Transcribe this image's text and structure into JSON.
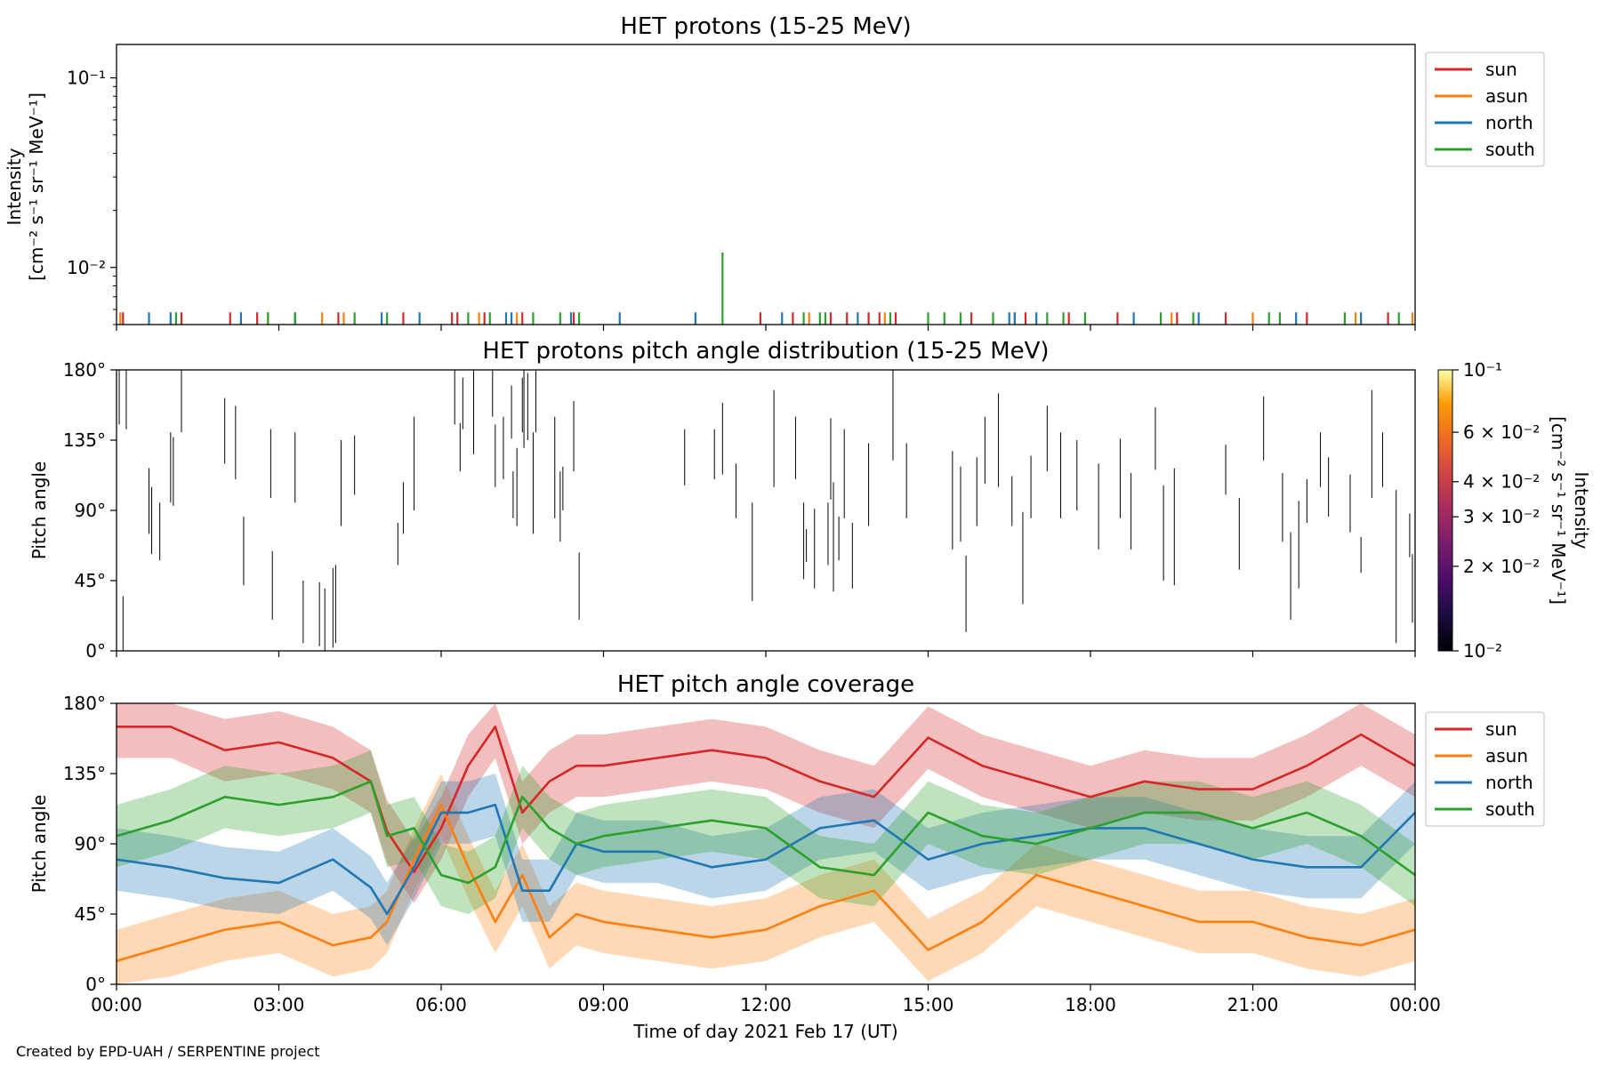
{
  "footer": "Created by EPD-UAH / SERPENTINE project",
  "colors": {
    "sun": "#d62728",
    "asun": "#ff7f0e",
    "north": "#1f77b4",
    "south": "#2ca02c",
    "pad_line": "#000000"
  },
  "chart_data": [
    {
      "type": "line",
      "title": "HET protons (15-25 MeV)",
      "xlabel": "",
      "ylabel": [
        "Intensity",
        "[cm⁻² s⁻¹ sr⁻¹ MeV⁻¹]"
      ],
      "yscale": "log",
      "ylim": [
        0.005,
        0.15
      ],
      "yticks": [
        {
          "value": 0.1,
          "label": "10⁻¹"
        },
        {
          "value": 0.01,
          "label": "10⁻²"
        }
      ],
      "xlim": [
        0,
        24
      ],
      "legend": [
        "sun",
        "asun",
        "north",
        "south"
      ],
      "legend_position": "outside-right",
      "series": [
        {
          "name": "sun",
          "color": "#d62728",
          "spike_height": 0.0058,
          "times": [
            0.12,
            1.2,
            2.1,
            2.6,
            4.1,
            5.3,
            6.2,
            6.3,
            6.8,
            7.5,
            8.45,
            11.9,
            12.5,
            13.2,
            13.5,
            13.9,
            14.1,
            14.4,
            15.8,
            16.8,
            17.6,
            18.5,
            19.6,
            20.5,
            22.0,
            23.5
          ]
        },
        {
          "name": "asun",
          "color": "#ff7f0e",
          "spike_height": 0.0058,
          "times": [
            0.07,
            2.8,
            3.8,
            4.2,
            6.7,
            7.4,
            12.8,
            14.2,
            16.6,
            19.5,
            21.0,
            22.9,
            23.95
          ]
        },
        {
          "name": "north",
          "color": "#1f77b4",
          "spike_height": 0.0058,
          "times": [
            0.6,
            1.0,
            2.3,
            3.3,
            4.9,
            5.6,
            7.3,
            7.2,
            8.4,
            9.3,
            10.7,
            12.3,
            13.7,
            16.5,
            16.6,
            17.0,
            18.8,
            20.0,
            21.8,
            23.0
          ]
        },
        {
          "name": "south",
          "color": "#2ca02c",
          "spike_height": 0.0058,
          "times": [
            1.1,
            2.8,
            3.3,
            4.4,
            5.0,
            6.5,
            6.9,
            7.7,
            8.2,
            8.55,
            12.7,
            13.0,
            13.1,
            14.3,
            15.0,
            15.3,
            15.6,
            16.2,
            17.2,
            17.5,
            17.9,
            19.3,
            19.9,
            21.3,
            21.5,
            22.7,
            23.7
          ],
          "peak": {
            "time": 11.2,
            "value": 0.012
          }
        }
      ]
    },
    {
      "type": "heatmap",
      "title": "HET protons pitch angle distribution (15-25 MeV)",
      "xlabel": "",
      "ylabel": "Pitch angle",
      "ylim": [
        0,
        180
      ],
      "yticks": [
        "0°",
        "45°",
        "90°",
        "135°",
        "180°"
      ],
      "xlim": [
        0,
        24
      ],
      "colorbar": {
        "label": [
          "Intensity",
          "[cm⁻² s⁻¹ sr⁻¹ MeV⁻¹]"
        ],
        "scale": "log",
        "range": [
          0.01,
          0.1
        ],
        "colormap": "inferno",
        "ticks": [
          {
            "value": 0.1,
            "label": "10⁻¹"
          },
          {
            "value": 0.06,
            "label": "6 × 10⁻²"
          },
          {
            "value": 0.04,
            "label": "4 × 10⁻²"
          },
          {
            "value": 0.03,
            "label": "3 × 10⁻²"
          },
          {
            "value": 0.02,
            "label": "2 × 10⁻²"
          },
          {
            "value": 0.01,
            "label": "10⁻²"
          }
        ]
      },
      "segments": [
        [
          0.05,
          180,
          145
        ],
        [
          0.12,
          35,
          0
        ],
        [
          0.18,
          180,
          142
        ],
        [
          0.6,
          117,
          75
        ],
        [
          0.65,
          105,
          62
        ],
        [
          0.8,
          95,
          58
        ],
        [
          1.0,
          140,
          95
        ],
        [
          1.05,
          137,
          93
        ],
        [
          1.2,
          180,
          140
        ],
        [
          2.0,
          162,
          120
        ],
        [
          2.2,
          157,
          110
        ],
        [
          2.35,
          86,
          42
        ],
        [
          2.85,
          142,
          98
        ],
        [
          2.88,
          64,
          20
        ],
        [
          3.3,
          140,
          95
        ],
        [
          3.45,
          45,
          5
        ],
        [
          3.75,
          44,
          3
        ],
        [
          3.85,
          40,
          0
        ],
        [
          4.0,
          53,
          2
        ],
        [
          4.05,
          55,
          5
        ],
        [
          4.15,
          135,
          80
        ],
        [
          4.4,
          138,
          100
        ],
        [
          5.2,
          82,
          55
        ],
        [
          5.3,
          108,
          75
        ],
        [
          5.5,
          150,
          90
        ],
        [
          6.25,
          180,
          145
        ],
        [
          6.35,
          146,
          115
        ],
        [
          6.4,
          175,
          142
        ],
        [
          6.6,
          180,
          126
        ],
        [
          6.95,
          180,
          150
        ],
        [
          7.0,
          145,
          105
        ],
        [
          7.15,
          150,
          110
        ],
        [
          7.3,
          170,
          136
        ],
        [
          7.33,
          115,
          85
        ],
        [
          7.4,
          130,
          80
        ],
        [
          7.5,
          175,
          140
        ],
        [
          7.53,
          180,
          130
        ],
        [
          7.6,
          178,
          135
        ],
        [
          7.7,
          140,
          75
        ],
        [
          7.75,
          180,
          140
        ],
        [
          8.1,
          150,
          85
        ],
        [
          8.2,
          115,
          70
        ],
        [
          8.25,
          118,
          90
        ],
        [
          8.45,
          160,
          115
        ],
        [
          8.55,
          63,
          20
        ],
        [
          10.5,
          142,
          106
        ],
        [
          11.05,
          142,
          110
        ],
        [
          11.2,
          159,
          113
        ],
        [
          11.45,
          120,
          85
        ],
        [
          11.75,
          95,
          32
        ],
        [
          12.15,
          167,
          105
        ],
        [
          12.55,
          150,
          110
        ],
        [
          12.7,
          95,
          46
        ],
        [
          12.75,
          78,
          57
        ],
        [
          12.9,
          91,
          40
        ],
        [
          13.15,
          95,
          55
        ],
        [
          13.2,
          149,
          97
        ],
        [
          13.25,
          108,
          38
        ],
        [
          13.35,
          86,
          58
        ],
        [
          13.45,
          142,
          85
        ],
        [
          13.6,
          82,
          40
        ],
        [
          13.9,
          133,
          80
        ],
        [
          14.35,
          180,
          122
        ],
        [
          14.6,
          133,
          85
        ],
        [
          15.45,
          128,
          65
        ],
        [
          15.6,
          118,
          70
        ],
        [
          15.7,
          61,
          12
        ],
        [
          15.9,
          124,
          80
        ],
        [
          16.05,
          150,
          107
        ],
        [
          16.3,
          165,
          105
        ],
        [
          16.55,
          112,
          80
        ],
        [
          16.75,
          89,
          30
        ],
        [
          16.9,
          125,
          85
        ],
        [
          17.2,
          157,
          115
        ],
        [
          17.45,
          140,
          85
        ],
        [
          17.75,
          135,
          90
        ],
        [
          18.15,
          120,
          65
        ],
        [
          18.55,
          136,
          85
        ],
        [
          18.75,
          114,
          65
        ],
        [
          19.2,
          156,
          116
        ],
        [
          19.35,
          106,
          45
        ],
        [
          19.55,
          117,
          42
        ],
        [
          20.5,
          132,
          100
        ],
        [
          20.75,
          98,
          52
        ],
        [
          21.2,
          163,
          122
        ],
        [
          21.55,
          114,
          70
        ],
        [
          21.7,
          76,
          20
        ],
        [
          21.85,
          96,
          40
        ],
        [
          22.0,
          110,
          82
        ],
        [
          22.25,
          140,
          105
        ],
        [
          22.4,
          124,
          86
        ],
        [
          22.8,
          113,
          76
        ],
        [
          23.0,
          73,
          50
        ],
        [
          23.2,
          167,
          98
        ],
        [
          23.4,
          140,
          105
        ],
        [
          23.65,
          103,
          5
        ],
        [
          23.9,
          88,
          60
        ],
        [
          23.95,
          62,
          18
        ]
      ]
    },
    {
      "type": "line",
      "title": "HET pitch angle coverage",
      "xlabel": "Time of day 2021 Feb 17 (UT)",
      "ylabel": "Pitch angle",
      "ylim": [
        0,
        180
      ],
      "yticks": [
        "0°",
        "45°",
        "90°",
        "135°",
        "180°"
      ],
      "xlim": [
        0,
        24
      ],
      "xticks": [
        "00:00",
        "03:00",
        "06:00",
        "09:00",
        "12:00",
        "15:00",
        "18:00",
        "21:00",
        "00:00"
      ],
      "legend": [
        "sun",
        "asun",
        "north",
        "south"
      ],
      "legend_position": "outside-right",
      "band_halfwidth_deg": 20,
      "x": [
        0,
        1,
        2,
        3,
        4,
        4.7,
        5,
        5.5,
        6,
        6.5,
        7,
        7.5,
        8,
        8.5,
        9,
        10,
        11,
        12,
        13,
        14,
        15,
        16,
        17,
        18,
        19,
        20,
        21,
        22,
        23,
        24
      ],
      "series": [
        {
          "name": "sun",
          "color": "#d62728",
          "values": [
            165,
            165,
            150,
            155,
            145,
            130,
            98,
            72,
            100,
            140,
            165,
            110,
            130,
            140,
            140,
            145,
            150,
            145,
            130,
            120,
            158,
            140,
            130,
            120,
            130,
            125,
            125,
            140,
            160,
            140
          ]
        },
        {
          "name": "asun",
          "color": "#ff7f0e",
          "values": [
            15,
            25,
            35,
            40,
            25,
            30,
            40,
            80,
            115,
            75,
            40,
            70,
            30,
            45,
            40,
            35,
            30,
            35,
            50,
            60,
            22,
            40,
            70,
            60,
            50,
            40,
            40,
            30,
            25,
            35
          ]
        },
        {
          "name": "north",
          "color": "#1f77b4",
          "values": [
            80,
            75,
            68,
            65,
            80,
            62,
            45,
            75,
            110,
            110,
            115,
            60,
            60,
            90,
            85,
            85,
            75,
            80,
            100,
            105,
            80,
            90,
            95,
            100,
            100,
            90,
            80,
            75,
            75,
            110
          ]
        },
        {
          "name": "south",
          "color": "#2ca02c",
          "values": [
            95,
            105,
            120,
            115,
            120,
            130,
            95,
            100,
            70,
            65,
            75,
            120,
            100,
            90,
            95,
            100,
            105,
            100,
            75,
            70,
            110,
            95,
            90,
            100,
            110,
            110,
            100,
            110,
            95,
            70
          ]
        }
      ]
    }
  ]
}
